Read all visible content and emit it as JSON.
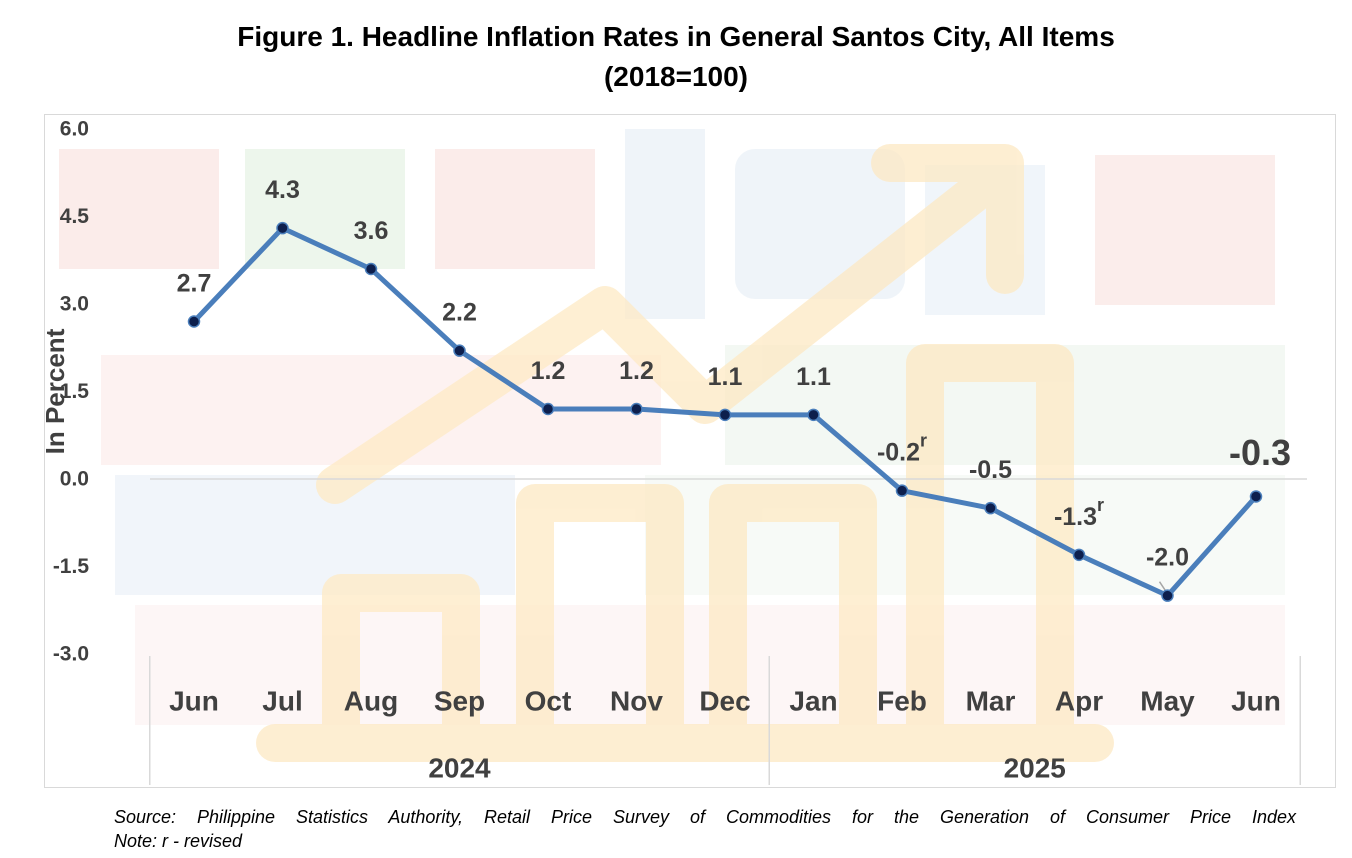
{
  "chart_data": {
    "type": "line",
    "title": "Figure 1. Headline Inflation Rates in General Santos City, All Items",
    "subtitle": "(2018=100)",
    "ylabel": "In Percent",
    "xlabel": "",
    "ylim": [
      -3.0,
      6.0
    ],
    "yticks": [
      "6.0",
      "4.5",
      "3.0",
      "1.5",
      "0.0",
      "-1.5",
      "-3.0"
    ],
    "categories": [
      "Jun",
      "Jul",
      "Aug",
      "Sep",
      "Oct",
      "Nov",
      "Dec",
      "Jan",
      "Feb",
      "Mar",
      "Apr",
      "May",
      "Jun"
    ],
    "groups": [
      {
        "label": "2024",
        "count": 7
      },
      {
        "label": "2025",
        "count": 6
      }
    ],
    "series": [
      {
        "values": [
          2.7,
          4.3,
          3.6,
          2.2,
          1.2,
          1.2,
          1.1,
          1.1,
          -0.2,
          -0.5,
          -1.3,
          -2.0,
          -0.3
        ],
        "labels": [
          "2.7",
          "4.3",
          "3.6",
          "2.2",
          "1.2",
          "1.2",
          "1.1",
          "1.1",
          "-0.2",
          "-0.5",
          "-1.3",
          "-2.0",
          "-0.3"
        ],
        "revised": [
          false,
          false,
          false,
          false,
          false,
          false,
          false,
          false,
          true,
          false,
          true,
          false,
          false
        ],
        "color": "#4a7ebb",
        "marker_color": "#0d1f4d"
      }
    ],
    "revised_mark": "r",
    "grid": false
  },
  "footer": {
    "source": "Source: Philippine Statistics Authority, Retail Price Survey of Commodities for the Generation of Consumer Price Index",
    "note": "Note: r - revised"
  }
}
